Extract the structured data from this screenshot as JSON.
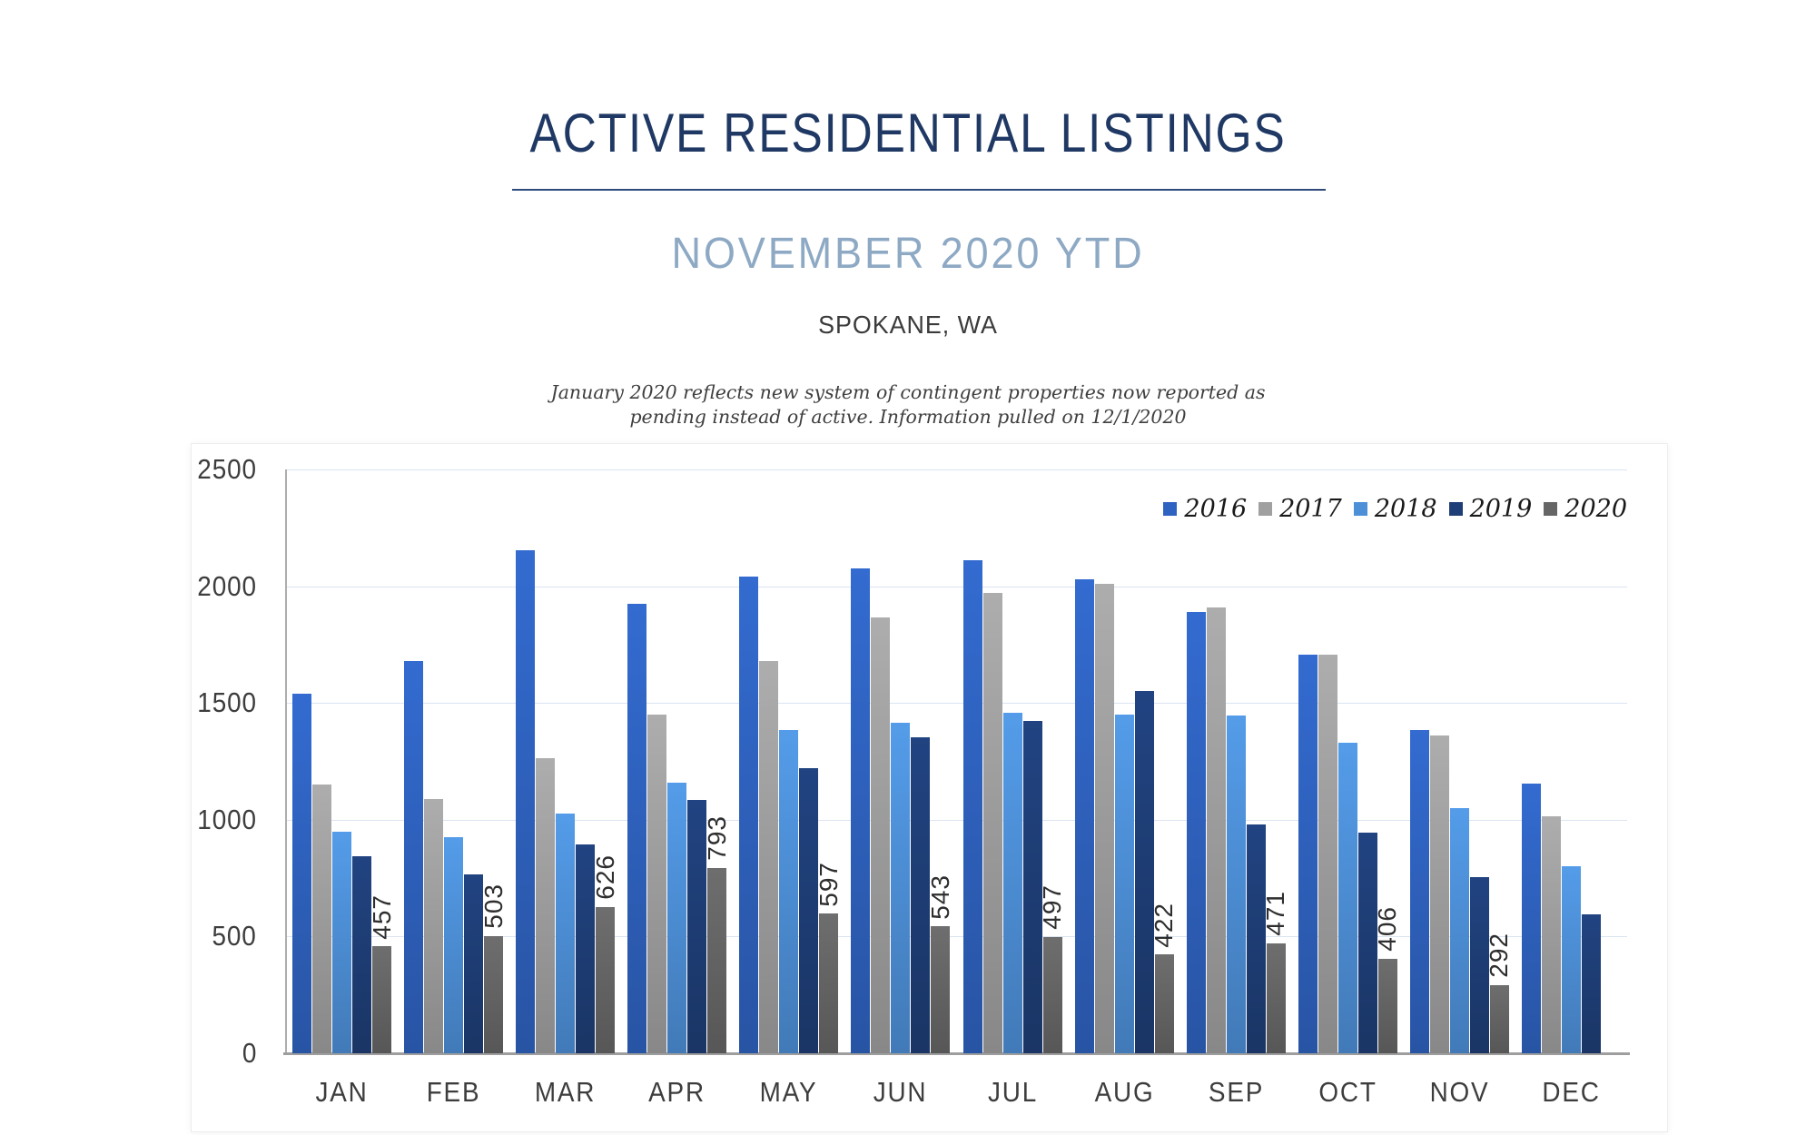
{
  "header": {
    "title": "ACTIVE RESIDENTIAL LISTINGS",
    "subtitle": "NOVEMBER 2020 YTD",
    "location": "SPOKANE, WA",
    "note_line1": "January 2020 reflects new system of contingent properties now reported as",
    "note_line2": "pending instead of active.  Information pulled on 12/1/2020"
  },
  "chart_data": {
    "type": "bar",
    "title": "ACTIVE RESIDENTIAL LISTINGS",
    "categories": [
      "JAN",
      "FEB",
      "MAR",
      "APR",
      "MAY",
      "JUN",
      "JUL",
      "AUG",
      "SEP",
      "OCT",
      "NOV",
      "DEC"
    ],
    "series": [
      {
        "name": "2016",
        "color": "#2F63C1",
        "values": [
          1540,
          1680,
          2155,
          1925,
          2040,
          2075,
          2110,
          2030,
          1890,
          1705,
          1385,
          1155
        ]
      },
      {
        "name": "2017",
        "color": "#A0A0A0",
        "values": [
          1150,
          1090,
          1265,
          1450,
          1680,
          1865,
          1970,
          2010,
          1910,
          1705,
          1360,
          1015
        ]
      },
      {
        "name": "2018",
        "color": "#4E90D8",
        "values": [
          950,
          925,
          1025,
          1160,
          1385,
          1415,
          1460,
          1450,
          1445,
          1330,
          1050,
          800
        ]
      },
      {
        "name": "2019",
        "color": "#1F3E77",
        "values": [
          845,
          765,
          895,
          1085,
          1220,
          1355,
          1425,
          1550,
          980,
          945,
          755,
          595
        ]
      },
      {
        "name": "2020",
        "color": "#666666",
        "data_labels": true,
        "values": [
          457,
          503,
          626,
          793,
          597,
          543,
          497,
          422,
          471,
          406,
          292,
          null
        ]
      }
    ],
    "ylim": [
      0,
      2500
    ],
    "yticks": [
      0,
      500,
      1000,
      1500,
      2000,
      2500
    ],
    "grid": "horizontal",
    "legend_position": "top-right",
    "gridline_color": "#DBE4F1",
    "axis_color": "#9E9E9E"
  }
}
